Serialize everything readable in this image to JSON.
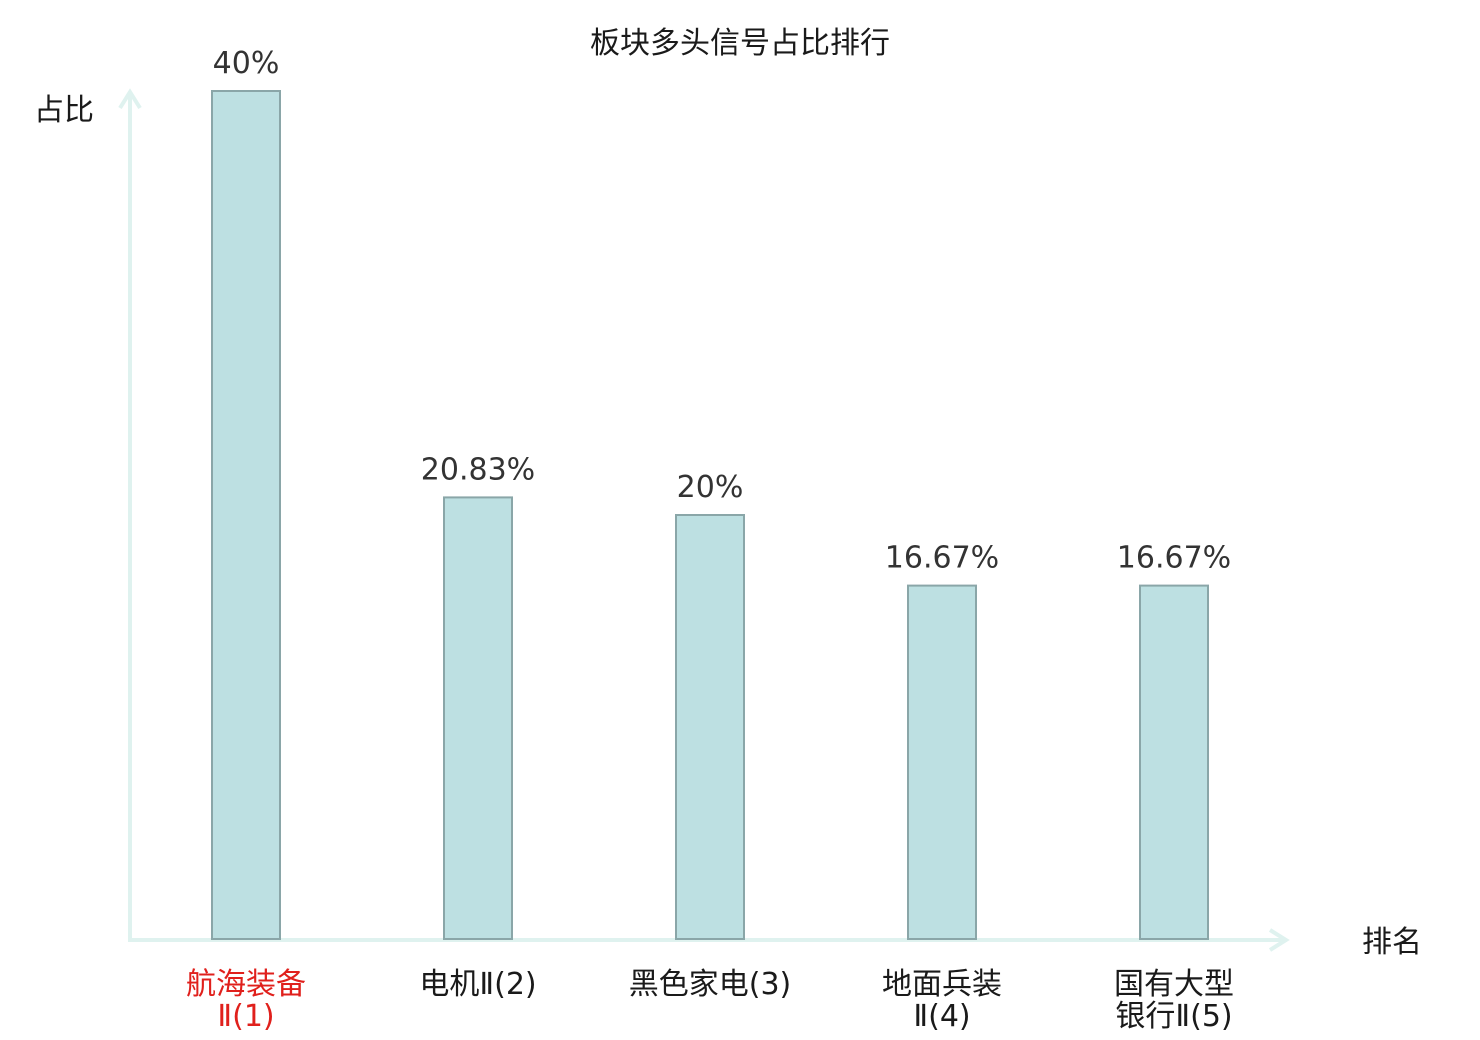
{
  "chart_data": {
    "type": "bar",
    "title": "板块多头信号占比排行",
    "xlabel": "排名",
    "ylabel": "占比",
    "categories": [
      [
        "航海装备",
        "Ⅱ(1)"
      ],
      [
        "电机Ⅱ(2)"
      ],
      [
        "黑色家电(3)"
      ],
      [
        "地面兵装",
        "Ⅱ(4)"
      ],
      [
        "国有大型",
        "银行Ⅱ(5)"
      ]
    ],
    "values": [
      40,
      20.83,
      20,
      16.67,
      16.67
    ],
    "value_labels": [
      "40%",
      "20.83%",
      "20%",
      "16.67%",
      "16.67%"
    ],
    "highlight_index": 0,
    "ylim": [
      0,
      40
    ],
    "grid": false,
    "colors": {
      "bar_fill": "#bde0e2",
      "bar_stroke": "#8aa6a8",
      "axis": "#dff2ef",
      "highlight_text": "#e0201c",
      "text": "#1a1a1a"
    }
  }
}
